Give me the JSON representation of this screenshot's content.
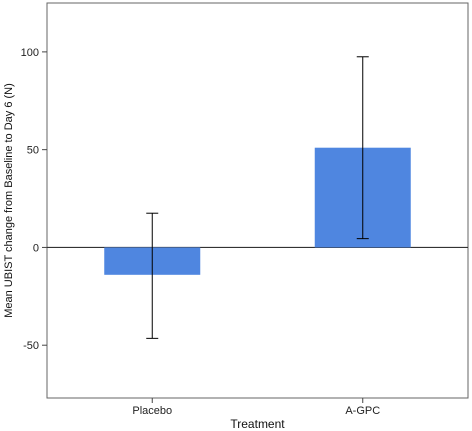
{
  "chart_data": {
    "type": "bar",
    "categories": [
      "Placebo",
      "A-GPC"
    ],
    "values": [
      -14,
      51
    ],
    "error_bars": [
      {
        "low": -46.5,
        "high": 17.5
      },
      {
        "low": 4.5,
        "high": 97.5
      }
    ],
    "xlabel": "Treatment",
    "ylabel": "Mean UBIST change from Baseline to Day 6 (N)",
    "ylim": [
      -77,
      125
    ],
    "yticks": [
      -50,
      0,
      50,
      100
    ],
    "ytick_labels": [
      "-50",
      "0",
      "50",
      "100"
    ],
    "grid": false,
    "zero_line": true,
    "bar_color": "#4f86e0",
    "errorbar_color": "#000000"
  }
}
